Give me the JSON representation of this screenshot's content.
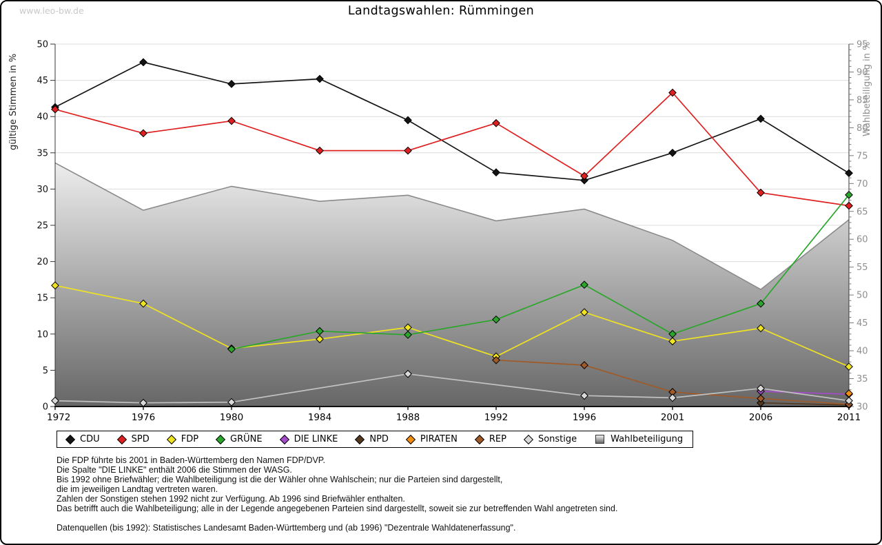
{
  "page": {
    "watermark": "www.leo-bw.de"
  },
  "chart_data": {
    "type": "line",
    "title": "Landtagswahlen: Rümmingen",
    "ylabel_left": "gültige Stimmen in %",
    "ylabel_right": "Wahlbeteiligung in %",
    "x_categories": [
      1972,
      1976,
      1980,
      1984,
      1988,
      1992,
      1996,
      2001,
      2006,
      2011
    ],
    "ylim_left": [
      0,
      50
    ],
    "ytick_step_left": 5,
    "ylim_right": [
      30,
      95
    ],
    "ytick_step_right": 5,
    "grid": true,
    "legend_position": "bottom",
    "series": [
      {
        "name": "CDU",
        "color": "#141414",
        "values": [
          41.3,
          47.5,
          44.5,
          45.2,
          39.5,
          32.3,
          31.2,
          35.0,
          39.7,
          32.2
        ]
      },
      {
        "name": "SPD",
        "color": "#DF2020",
        "values": [
          41.0,
          37.7,
          39.4,
          35.3,
          35.3,
          39.1,
          31.8,
          43.3,
          29.5,
          27.7
        ]
      },
      {
        "name": "FDP",
        "color": "#F0E321",
        "values": [
          16.7,
          14.2,
          8.0,
          9.3,
          10.9,
          6.9,
          13.0,
          9.0,
          10.8,
          5.5
        ]
      },
      {
        "name": "GRÜNE",
        "color": "#2AA62A",
        "values": [
          null,
          null,
          7.9,
          10.4,
          9.9,
          12.0,
          16.8,
          10.0,
          14.2,
          29.2
        ]
      },
      {
        "name": "DIE LINKE",
        "color": "#A44BCB",
        "values": [
          null,
          null,
          null,
          null,
          null,
          null,
          null,
          null,
          2.1,
          1.7
        ]
      },
      {
        "name": "NPD",
        "color": "#54391E",
        "values": [
          null,
          null,
          null,
          null,
          null,
          null,
          null,
          null,
          0.5,
          0.2
        ]
      },
      {
        "name": "PIRATEN",
        "color": "#EF8E10",
        "values": [
          null,
          null,
          null,
          null,
          null,
          null,
          null,
          null,
          null,
          1.8
        ]
      },
      {
        "name": "REP",
        "color": "#A05A28",
        "values": [
          null,
          null,
          null,
          null,
          null,
          6.4,
          5.7,
          2.0,
          1.1,
          0.3
        ]
      },
      {
        "name": "Sonstige",
        "color": "#D9D9D9",
        "line_color": "#C2C2C2",
        "values": [
          0.8,
          0.5,
          0.6,
          null,
          4.5,
          null,
          1.5,
          1.2,
          2.5,
          0.8
        ]
      }
    ],
    "participation": {
      "name": "Wahlbeteiligung",
      "type": "area",
      "axis": "right",
      "line_color": "#8A8A8A",
      "fill_top": "#EDEDED",
      "fill_bottom": "#666666",
      "values": [
        73.7,
        65.2,
        69.5,
        66.8,
        67.9,
        63.3,
        65.4,
        59.8,
        51.0,
        63.5
      ]
    }
  },
  "notes": {
    "lines": [
      "Die FDP führte bis 2001 in Baden-Württemberg den Namen FDP/DVP.",
      "Die Spalte \"DIE LINKE\" enthält 2006 die Stimmen der WASG.",
      "Bis 1992 ohne Briefwähler; die Wahlbeteiligung ist die der Wähler ohne Wahlschein; nur die Parteien sind dargestellt,",
      "die im jeweiligen Landtag vertreten waren.",
      "Zahlen der Sonstigen stehen 1992 nicht zur Verfügung. Ab 1996 sind Briefwähler enthalten.",
      "Das betrifft auch die Wahlbeteiligung; alle in der Legende angegebenen Parteien sind dargestellt, soweit sie zur betreffenden Wahl angetreten sind.",
      "",
      "Datenquellen (bis 1992): Statistisches Landesamt Baden-Württemberg und (ab 1996) \"Dezentrale Wahldatenerfassung\"."
    ]
  }
}
